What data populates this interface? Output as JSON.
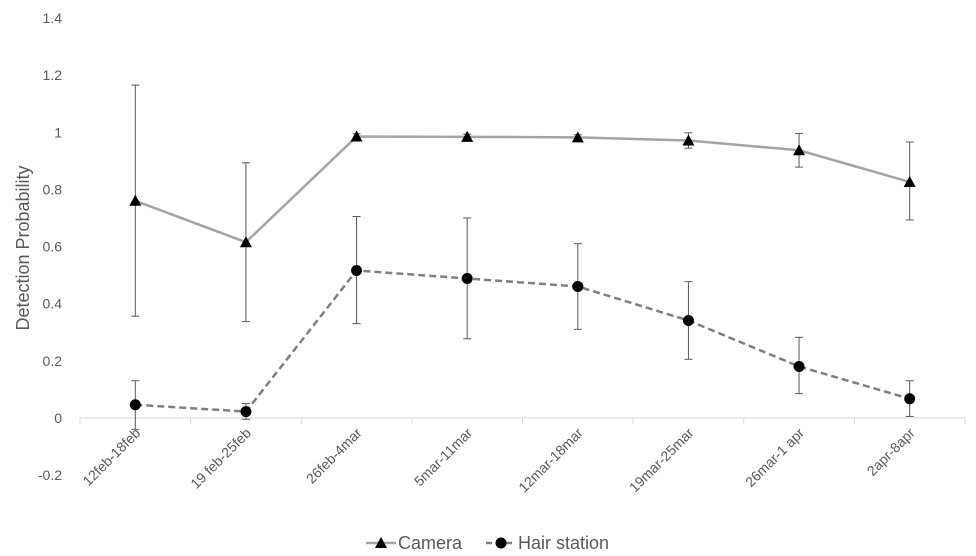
{
  "chart_data": {
    "type": "line",
    "title": "",
    "xlabel": "",
    "ylabel": "Detection Probability",
    "ylim": [
      -0.2,
      1.4
    ],
    "ytick_step": 0.2,
    "yticks": [
      "1.4",
      "1.2",
      "1",
      "0.8",
      "0.6",
      "0.4",
      "0.2",
      "0",
      "-0.2"
    ],
    "categories": [
      "12feb-18feb",
      "19 feb-25feb",
      "26feb-4mar",
      "5mar-11mar",
      "12mar-18mar",
      "19mar-25mar",
      "26mar-1 apr",
      "2apr-8apr"
    ],
    "grid": false,
    "legend_position": "bottom",
    "series": [
      {
        "name": "Camera",
        "marker": "triangle",
        "line_style": "solid",
        "color": "#a5a5a5",
        "values": [
          0.76,
          0.615,
          0.985,
          0.984,
          0.982,
          0.971,
          0.937,
          0.826
        ],
        "error_upper": [
          1.165,
          0.893,
          0.995,
          0.993,
          0.991,
          0.998,
          0.996,
          0.966
        ],
        "error_lower": [
          0.356,
          0.337,
          0.975,
          0.975,
          0.973,
          0.944,
          0.878,
          0.693
        ]
      },
      {
        "name": "Hair station",
        "marker": "circle",
        "line_style": "dashed",
        "color": "#7f7f7f",
        "values": [
          0.046,
          0.022,
          0.516,
          0.488,
          0.46,
          0.341,
          0.18,
          0.067
        ],
        "error_upper": [
          0.13,
          0.05,
          0.705,
          0.7,
          0.61,
          0.477,
          0.282,
          0.13
        ],
        "error_lower": [
          -0.04,
          -0.005,
          0.33,
          0.277,
          0.31,
          0.205,
          0.085,
          0.005
        ]
      }
    ]
  }
}
